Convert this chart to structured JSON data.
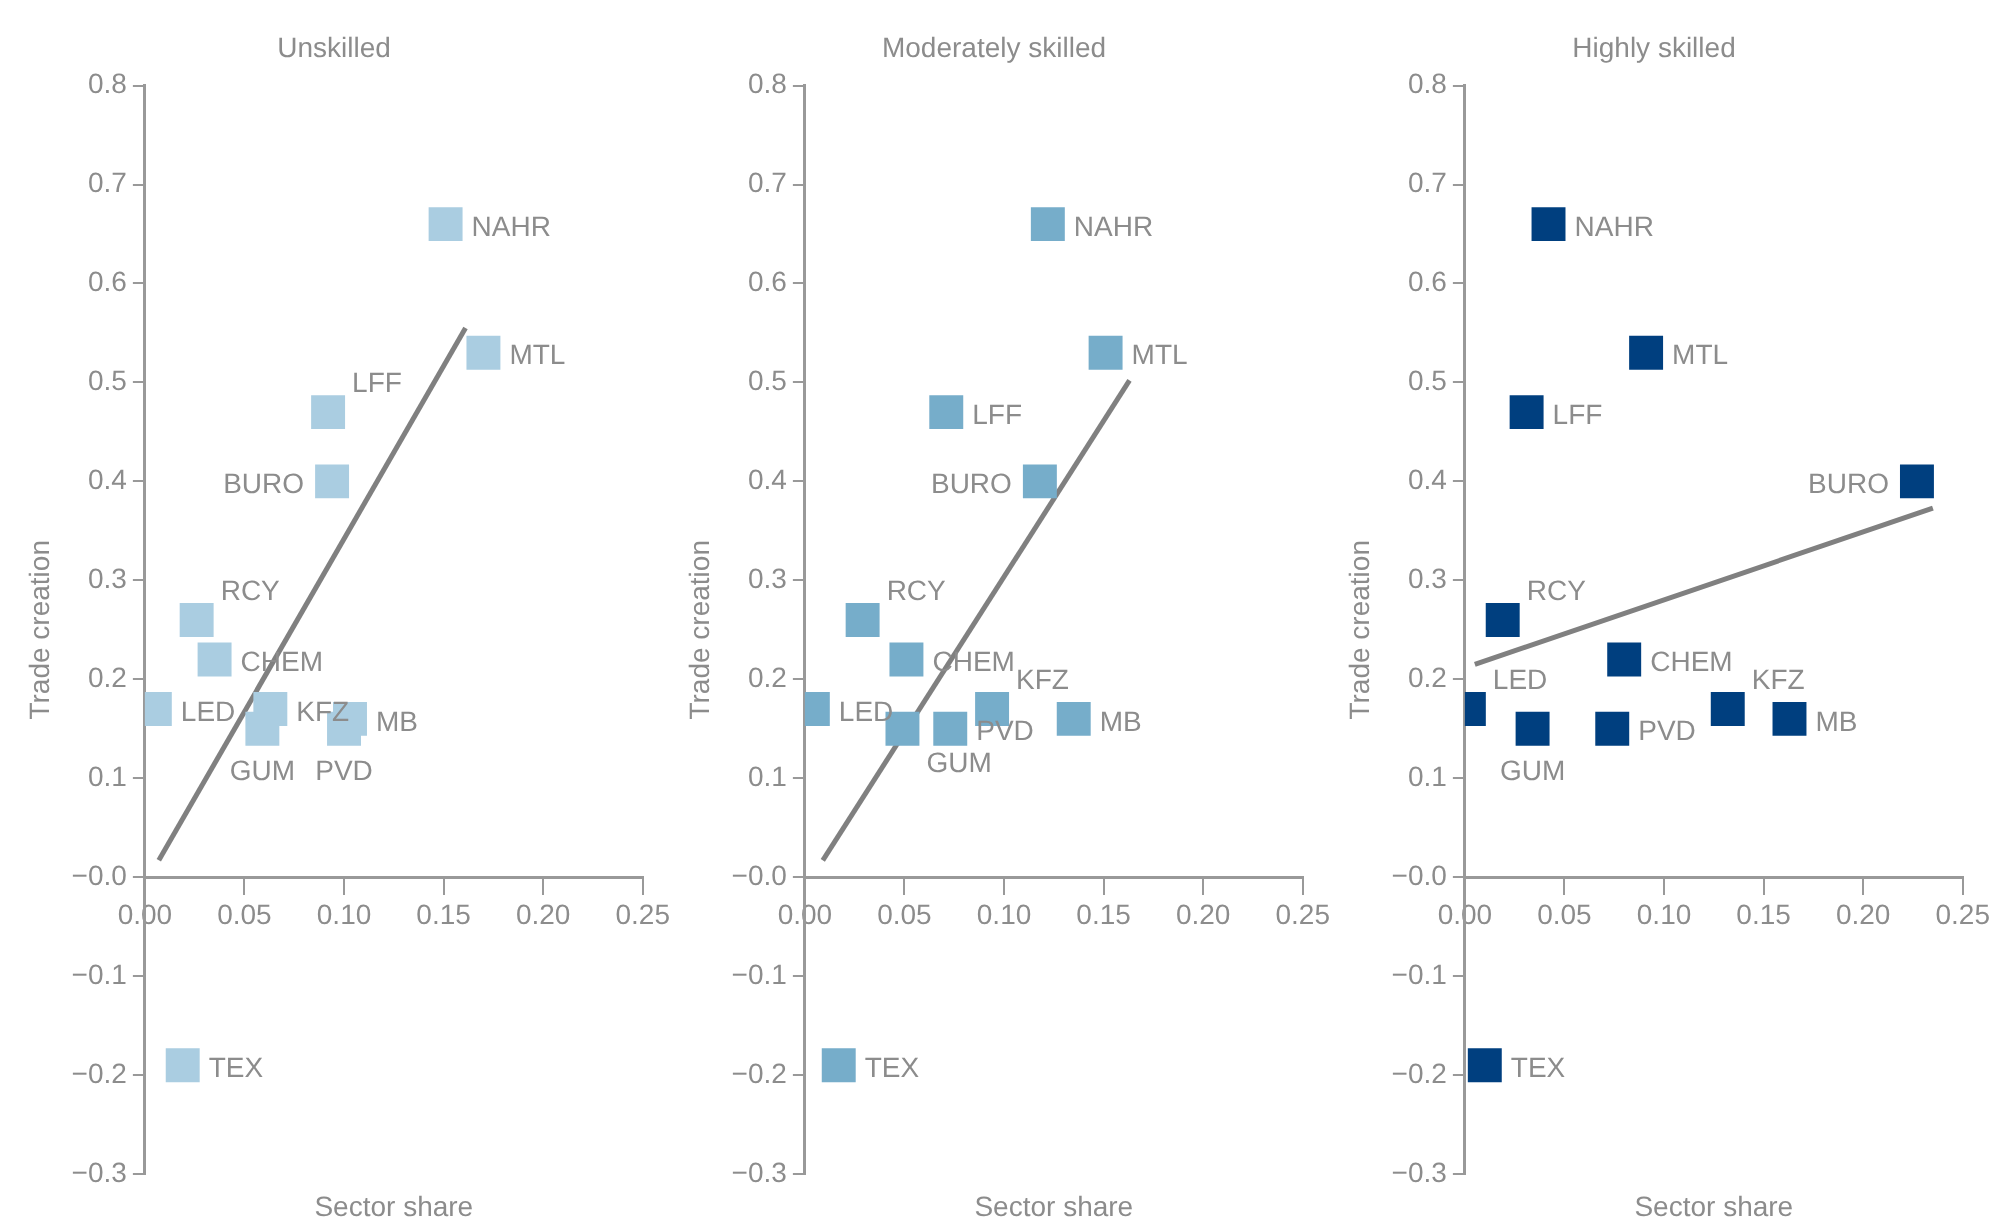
{
  "chart_data": [
    {
      "type": "scatter",
      "title": "Unskilled",
      "xlabel": "Sector share",
      "ylabel": "Trade creation",
      "marker": "square",
      "legend": false,
      "grid": false,
      "xlim": [
        0,
        0.25
      ],
      "xticks": [
        {
          "value": 0,
          "label": "0.00"
        },
        0.05,
        {
          "value": 0.1,
          "label": "0.10"
        },
        0.15,
        {
          "value": 0.2,
          "label": "0.20"
        },
        0.25
      ],
      "ylim": [
        -0.3,
        0.8
      ],
      "yticks": [
        {
          "value": -0.3,
          "label": "−0.3"
        },
        {
          "value": -0.2,
          "label": "−0.2"
        },
        {
          "value": -0.1,
          "label": "−0.1"
        },
        {
          "value": 0,
          "label": "−0.0"
        },
        0.1,
        0.2,
        0.3,
        0.4,
        0.5,
        0.6,
        0.7,
        0.8
      ],
      "series": [
        {
          "color": "#aacde1",
          "x": [
            0.151,
            0.17,
            0.092,
            0.094,
            0.026,
            0.035,
            0.005,
            0.063,
            0.059,
            0.103,
            0.1,
            0.019
          ],
          "values": [
            0.66,
            0.53,
            0.47,
            0.4,
            0.26,
            0.22,
            0.17,
            0.17,
            0.15,
            0.16,
            0.15,
            -0.19
          ]
        },
        {
          "type": "line",
          "marker": "none",
          "color": "#808080",
          "x": [
            0.007,
            0.161
          ],
          "values": [
            0.017,
            0.555
          ]
        }
      ],
      "annotations": [
        {
          "text": "NAHR",
          "x": 0.151,
          "y": 0.66
        },
        {
          "text": "MTL",
          "x": 0.17,
          "y": 0.53
        },
        {
          "text": "LFF",
          "x": 0.092,
          "y": 0.47
        },
        {
          "text": "BURO",
          "x": 0.094,
          "y": 0.4
        },
        {
          "text": "RCY",
          "x": 0.026,
          "y": 0.26
        },
        {
          "text": "CHEM",
          "x": 0.035,
          "y": 0.22
        },
        {
          "text": "LED",
          "x": 0.005,
          "y": 0.17
        },
        {
          "text": "KFZ",
          "x": 0.063,
          "y": 0.17
        },
        {
          "text": "GUM",
          "x": 0.059,
          "y": 0.15
        },
        {
          "text": "MB",
          "x": 0.103,
          "y": 0.16
        },
        {
          "text": "PVD",
          "x": 0.1,
          "y": 0.15
        },
        {
          "text": "TEX",
          "x": 0.019,
          "y": -0.19
        }
      ]
    },
    {
      "type": "scatter",
      "title": "Moderately skilled",
      "xlabel": "Sector share",
      "ylabel": "Trade creation",
      "marker": "square",
      "legend": false,
      "grid": false,
      "xlim": [
        0,
        0.25
      ],
      "xticks": [
        {
          "value": 0,
          "label": "0.00"
        },
        0.05,
        {
          "value": 0.1,
          "label": "0.10"
        },
        0.15,
        {
          "value": 0.2,
          "label": "0.20"
        },
        0.25
      ],
      "ylim": [
        -0.3,
        0.8
      ],
      "yticks": [
        {
          "value": -0.3,
          "label": "−0.3"
        },
        {
          "value": -0.2,
          "label": "−0.2"
        },
        {
          "value": -0.1,
          "label": "−0.1"
        },
        {
          "value": 0,
          "label": "−0.0"
        },
        0.1,
        0.2,
        0.3,
        0.4,
        0.5,
        0.6,
        0.7,
        0.8
      ],
      "series": [
        {
          "color": "#76adca",
          "x": [
            0.122,
            0.151,
            0.071,
            0.118,
            0.029,
            0.051,
            0.004,
            0.049,
            0.073,
            0.094,
            0.135,
            0.017
          ],
          "values": [
            0.66,
            0.53,
            0.47,
            0.4,
            0.26,
            0.22,
            0.17,
            0.15,
            0.15,
            0.17,
            0.16,
            -0.19
          ]
        },
        {
          "type": "line",
          "marker": "none",
          "color": "#808080",
          "x": [
            0.009,
            0.163
          ],
          "values": [
            0.017,
            0.502
          ]
        }
      ],
      "annotations": [
        {
          "text": "NAHR",
          "x": 0.122,
          "y": 0.66
        },
        {
          "text": "MTL",
          "x": 0.151,
          "y": 0.53
        },
        {
          "text": "LFF",
          "x": 0.071,
          "y": 0.47
        },
        {
          "text": "BURO",
          "x": 0.118,
          "y": 0.4
        },
        {
          "text": "RCY",
          "x": 0.029,
          "y": 0.26
        },
        {
          "text": "CHEM",
          "x": 0.051,
          "y": 0.22
        },
        {
          "text": "LED",
          "x": 0.004,
          "y": 0.17
        },
        {
          "text": "GUM",
          "x": 0.049,
          "y": 0.15
        },
        {
          "text": "PVD",
          "x": 0.073,
          "y": 0.15
        },
        {
          "text": "KFZ",
          "x": 0.094,
          "y": 0.17
        },
        {
          "text": "MB",
          "x": 0.135,
          "y": 0.16
        },
        {
          "text": "TEX",
          "x": 0.017,
          "y": -0.19
        }
      ]
    },
    {
      "type": "scatter",
      "title": "Highly skilled",
      "xlabel": "Sector share",
      "ylabel": "Trade creation",
      "marker": "square",
      "legend": false,
      "grid": false,
      "xlim": [
        0,
        0.25
      ],
      "xticks": [
        {
          "value": 0,
          "label": "0.00"
        },
        0.05,
        {
          "value": 0.1,
          "label": "0.10"
        },
        0.15,
        {
          "value": 0.2,
          "label": "0.20"
        },
        0.25
      ],
      "ylim": [
        -0.3,
        0.8
      ],
      "yticks": [
        {
          "value": -0.3,
          "label": "−0.3"
        },
        {
          "value": -0.2,
          "label": "−0.2"
        },
        {
          "value": -0.1,
          "label": "−0.1"
        },
        {
          "value": 0,
          "label": "−0.0"
        },
        0.1,
        0.2,
        0.3,
        0.4,
        0.5,
        0.6,
        0.7,
        0.8
      ],
      "series": [
        {
          "color": "#003f7f",
          "x": [
            0.042,
            0.091,
            0.031,
            0.227,
            0.019,
            0.08,
            0.002,
            0.034,
            0.074,
            0.132,
            0.163,
            0.01
          ],
          "values": [
            0.66,
            0.53,
            0.47,
            0.4,
            0.26,
            0.22,
            0.17,
            0.15,
            0.15,
            0.17,
            0.16,
            -0.19
          ]
        },
        {
          "type": "line",
          "marker": "none",
          "color": "#808080",
          "x": [
            0.005,
            0.235
          ],
          "values": [
            0.215,
            0.373
          ]
        }
      ],
      "annotations": [
        {
          "text": "NAHR",
          "x": 0.042,
          "y": 0.66
        },
        {
          "text": "MTL",
          "x": 0.091,
          "y": 0.53
        },
        {
          "text": "LFF",
          "x": 0.031,
          "y": 0.47
        },
        {
          "text": "BURO",
          "x": 0.227,
          "y": 0.4
        },
        {
          "text": "RCY",
          "x": 0.019,
          "y": 0.26
        },
        {
          "text": "CHEM",
          "x": 0.08,
          "y": 0.22
        },
        {
          "text": "LED",
          "x": 0.002,
          "y": 0.17
        },
        {
          "text": "GUM",
          "x": 0.034,
          "y": 0.15
        },
        {
          "text": "PVD",
          "x": 0.074,
          "y": 0.15
        },
        {
          "text": "KFZ",
          "x": 0.132,
          "y": 0.17
        },
        {
          "text": "MB",
          "x": 0.163,
          "y": 0.16
        },
        {
          "text": "TEX",
          "x": 0.01,
          "y": -0.19
        }
      ]
    }
  ]
}
